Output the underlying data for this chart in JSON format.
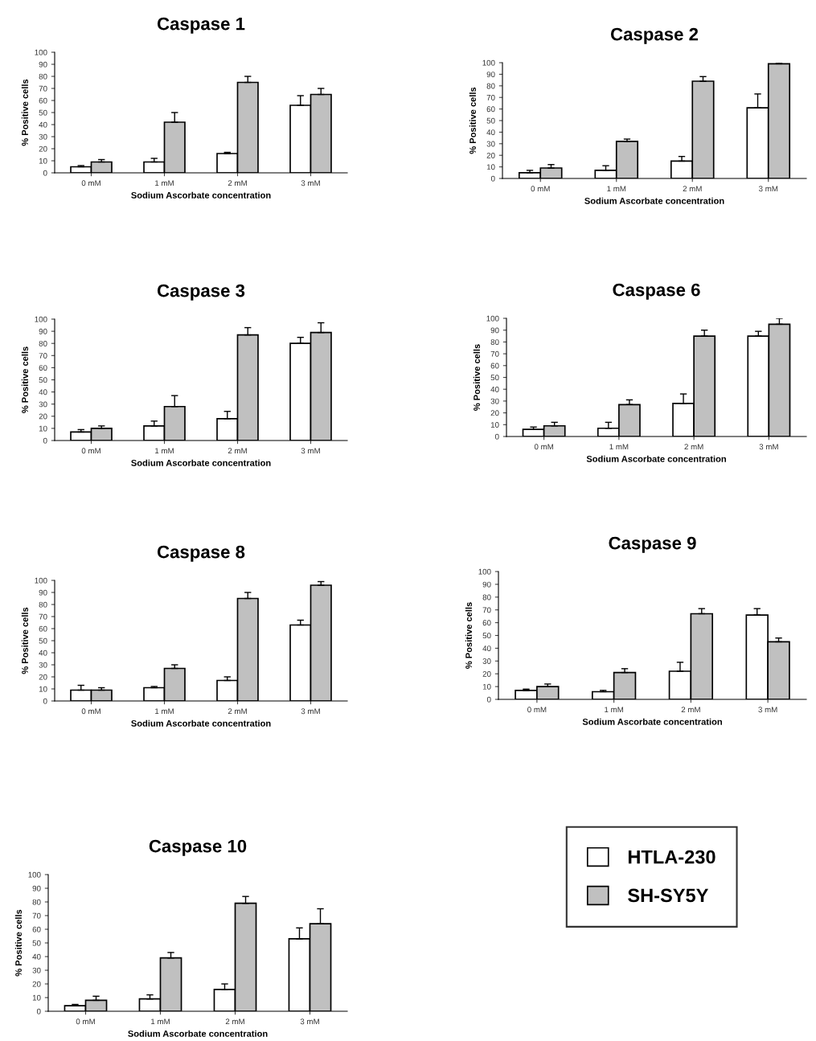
{
  "chart_data": [
    {
      "type": "bar",
      "title": "Caspase 1",
      "xlabel": "Sodium Ascorbate concentration",
      "ylabel": "% Positive cells",
      "categories": [
        "0 mM",
        "1 mM",
        "2 mM",
        "3 mM"
      ],
      "ylim": [
        0,
        100
      ],
      "yticks": [
        0,
        10,
        20,
        30,
        40,
        50,
        60,
        70,
        80,
        90,
        100
      ],
      "grid": false,
      "legend": false,
      "series": [
        {
          "color": "#ffffff",
          "values": [
            5,
            9,
            16,
            56
          ],
          "errors": [
            [
              5,
              6
            ],
            [
              9,
              12
            ],
            [
              16,
              17
            ],
            [
              56,
              64
            ]
          ]
        },
        {
          "color": "#c0c0c0",
          "values": [
            9,
            42,
            75,
            65
          ],
          "errors": [
            [
              9,
              11
            ],
            [
              42,
              50
            ],
            [
              75,
              80
            ],
            [
              65,
              70
            ]
          ]
        }
      ]
    },
    {
      "type": "bar",
      "title": "Caspase 2",
      "xlabel": "Sodium Ascorbate concentration",
      "ylabel": "% Positive cells",
      "categories": [
        "0 mM",
        "1 mM",
        "2 mM",
        "3 mM"
      ],
      "ylim": [
        0,
        100
      ],
      "yticks": [
        0,
        10,
        20,
        30,
        40,
        50,
        60,
        70,
        80,
        90,
        100
      ],
      "grid": false,
      "legend": false,
      "series": [
        {
          "color": "#ffffff",
          "values": [
            5,
            7,
            15,
            61
          ],
          "errors": [
            [
              5,
              7
            ],
            [
              7,
              11
            ],
            [
              15,
              19
            ],
            [
              61,
              73
            ]
          ]
        },
        {
          "color": "#c0c0c0",
          "values": [
            9,
            32,
            84,
            99
          ],
          "errors": [
            [
              9,
              12
            ],
            [
              32,
              34
            ],
            [
              84,
              88
            ],
            [
              99,
              100
            ]
          ]
        }
      ]
    },
    {
      "type": "bar",
      "title": "Caspase 3",
      "xlabel": "Sodium Ascorbate concentration",
      "ylabel": "% Positive cells",
      "categories": [
        "0 mM",
        "1 mM",
        "2 mM",
        "3 mM"
      ],
      "ylim": [
        0,
        100
      ],
      "yticks": [
        0,
        10,
        20,
        30,
        40,
        50,
        60,
        70,
        80,
        90,
        100
      ],
      "grid": false,
      "legend": false,
      "series": [
        {
          "color": "#ffffff",
          "values": [
            7,
            12,
            18,
            80
          ],
          "errors": [
            [
              7,
              9
            ],
            [
              12,
              16
            ],
            [
              18,
              24
            ],
            [
              80,
              85
            ]
          ]
        },
        {
          "color": "#c0c0c0",
          "values": [
            10,
            28,
            87,
            89
          ],
          "errors": [
            [
              10,
              12
            ],
            [
              28,
              37
            ],
            [
              87,
              93
            ],
            [
              89,
              97
            ]
          ]
        }
      ]
    },
    {
      "type": "bar",
      "title": "Caspase 6",
      "xlabel": "Sodium Ascorbate concentration",
      "ylabel": "% Positive cells",
      "categories": [
        "0 mM",
        "1 mM",
        "2 mM",
        "3 mM"
      ],
      "ylim": [
        0,
        100
      ],
      "yticks": [
        0,
        10,
        20,
        30,
        40,
        50,
        60,
        70,
        80,
        90,
        100
      ],
      "grid": false,
      "legend": false,
      "series": [
        {
          "color": "#ffffff",
          "values": [
            6,
            7,
            28,
            85
          ],
          "errors": [
            [
              6,
              8
            ],
            [
              7,
              12
            ],
            [
              28,
              36
            ],
            [
              85,
              89
            ]
          ]
        },
        {
          "color": "#c0c0c0",
          "values": [
            9,
            27,
            85,
            95
          ],
          "errors": [
            [
              9,
              12
            ],
            [
              27,
              31
            ],
            [
              85,
              90
            ],
            [
              95,
              100
            ]
          ]
        }
      ]
    },
    {
      "type": "bar",
      "title": "Caspase 8",
      "xlabel": "Sodium Ascorbate concentration",
      "ylabel": "% Positive cells",
      "categories": [
        "0 mM",
        "1 mM",
        "2 mM",
        "3 mM"
      ],
      "ylim": [
        0,
        100
      ],
      "yticks": [
        0,
        10,
        20,
        30,
        40,
        50,
        60,
        70,
        80,
        90,
        100
      ],
      "grid": false,
      "legend": false,
      "series": [
        {
          "color": "#ffffff",
          "values": [
            9,
            11,
            17,
            63
          ],
          "errors": [
            [
              9,
              13
            ],
            [
              11,
              12
            ],
            [
              17,
              20
            ],
            [
              63,
              67
            ]
          ]
        },
        {
          "color": "#c0c0c0",
          "values": [
            9,
            27,
            85,
            96
          ],
          "errors": [
            [
              9,
              11
            ],
            [
              27,
              30
            ],
            [
              85,
              90
            ],
            [
              96,
              99
            ]
          ]
        }
      ]
    },
    {
      "type": "bar",
      "title": "Caspase 9",
      "xlabel": "Sodium Ascorbate concentration",
      "ylabel": "% Positive cells",
      "categories": [
        "0 mM",
        "1 mM",
        "2 mM",
        "3 mM"
      ],
      "ylim": [
        0,
        100
      ],
      "yticks": [
        0,
        10,
        20,
        30,
        40,
        50,
        60,
        70,
        80,
        90,
        100
      ],
      "grid": false,
      "legend": false,
      "series": [
        {
          "color": "#ffffff",
          "values": [
            7,
            6,
            22,
            66
          ],
          "errors": [
            [
              7,
              8
            ],
            [
              6,
              7
            ],
            [
              22,
              29
            ],
            [
              66,
              71
            ]
          ]
        },
        {
          "color": "#c0c0c0",
          "values": [
            10,
            21,
            67,
            45
          ],
          "errors": [
            [
              10,
              12
            ],
            [
              21,
              24
            ],
            [
              67,
              71
            ],
            [
              45,
              48
            ]
          ]
        }
      ]
    },
    {
      "type": "bar",
      "title": "Caspase 10",
      "xlabel": "Sodium Ascorbate concentration",
      "ylabel": "% Positive cells",
      "categories": [
        "0 mM",
        "1 mM",
        "2 mM",
        "3 mM"
      ],
      "ylim": [
        0,
        100
      ],
      "yticks": [
        0,
        10,
        20,
        30,
        40,
        50,
        60,
        70,
        80,
        90,
        100
      ],
      "grid": false,
      "legend": "right",
      "series": [
        {
          "name": "HTLA-230",
          "color": "#ffffff",
          "values": [
            4,
            9,
            16,
            53
          ],
          "errors": [
            [
              4,
              5
            ],
            [
              9,
              12
            ],
            [
              16,
              20
            ],
            [
              53,
              61
            ]
          ]
        },
        {
          "name": "SH-SY5Y",
          "color": "#c0c0c0",
          "values": [
            8,
            39,
            79,
            64
          ],
          "errors": [
            [
              8,
              11
            ],
            [
              39,
              43
            ],
            [
              79,
              84
            ],
            [
              64,
              75
            ]
          ]
        }
      ]
    }
  ]
}
